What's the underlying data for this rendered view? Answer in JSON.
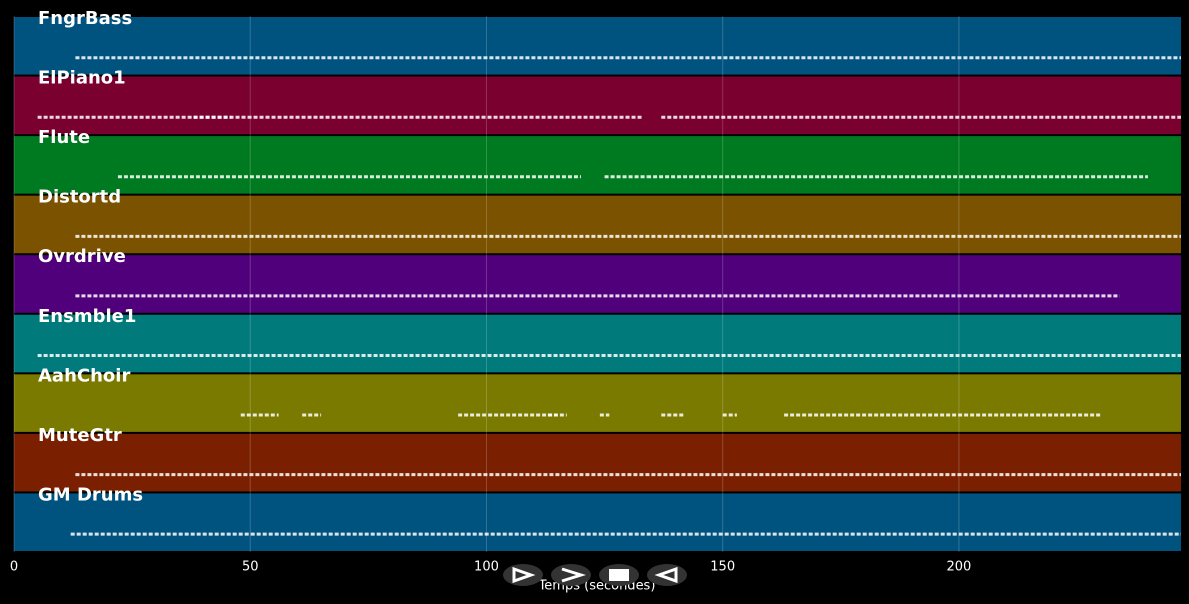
{
  "chart_data": {
    "type": "pianoroll",
    "xlabel": "Temps (secondes)",
    "xlim": [
      0,
      247
    ],
    "xticks": [
      0,
      50,
      100,
      150,
      200
    ],
    "grid": true,
    "series": [
      {
        "name": "FngrBass",
        "color": "#00527f",
        "segments": [
          [
            13,
            247
          ]
        ]
      },
      {
        "name": "ElPiano1",
        "color": "#7a0030",
        "segments": [
          [
            5,
            46
          ],
          [
            38,
            133
          ],
          [
            137,
            247
          ]
        ]
      },
      {
        "name": "Flute",
        "color": "#007a20",
        "segments": [
          [
            22,
            120
          ],
          [
            125,
            134
          ],
          [
            134,
            240
          ]
        ]
      },
      {
        "name": "Distortd",
        "color": "#7a5200",
        "segments": [
          [
            13,
            247
          ]
        ]
      },
      {
        "name": "Ovrdrive",
        "color": "#50007a",
        "segments": [
          [
            13,
            234
          ]
        ]
      },
      {
        "name": "Ensmble1",
        "color": "#007a7a",
        "segments": [
          [
            5,
            38
          ],
          [
            38,
            247
          ]
        ]
      },
      {
        "name": "AahChoir",
        "color": "#7a7a00",
        "segments": [
          [
            48,
            56
          ],
          [
            61,
            65
          ],
          [
            94,
            115
          ],
          [
            113,
            117
          ],
          [
            124,
            126
          ],
          [
            137,
            142
          ],
          [
            150,
            153
          ],
          [
            163,
            230
          ]
        ]
      },
      {
        "name": "MuteGtr",
        "color": "#7a2000",
        "segments": [
          [
            13,
            247
          ]
        ]
      },
      {
        "name": "GM Drums",
        "color": "#00527f",
        "segments": [
          [
            12,
            247
          ]
        ]
      }
    ]
  }
}
